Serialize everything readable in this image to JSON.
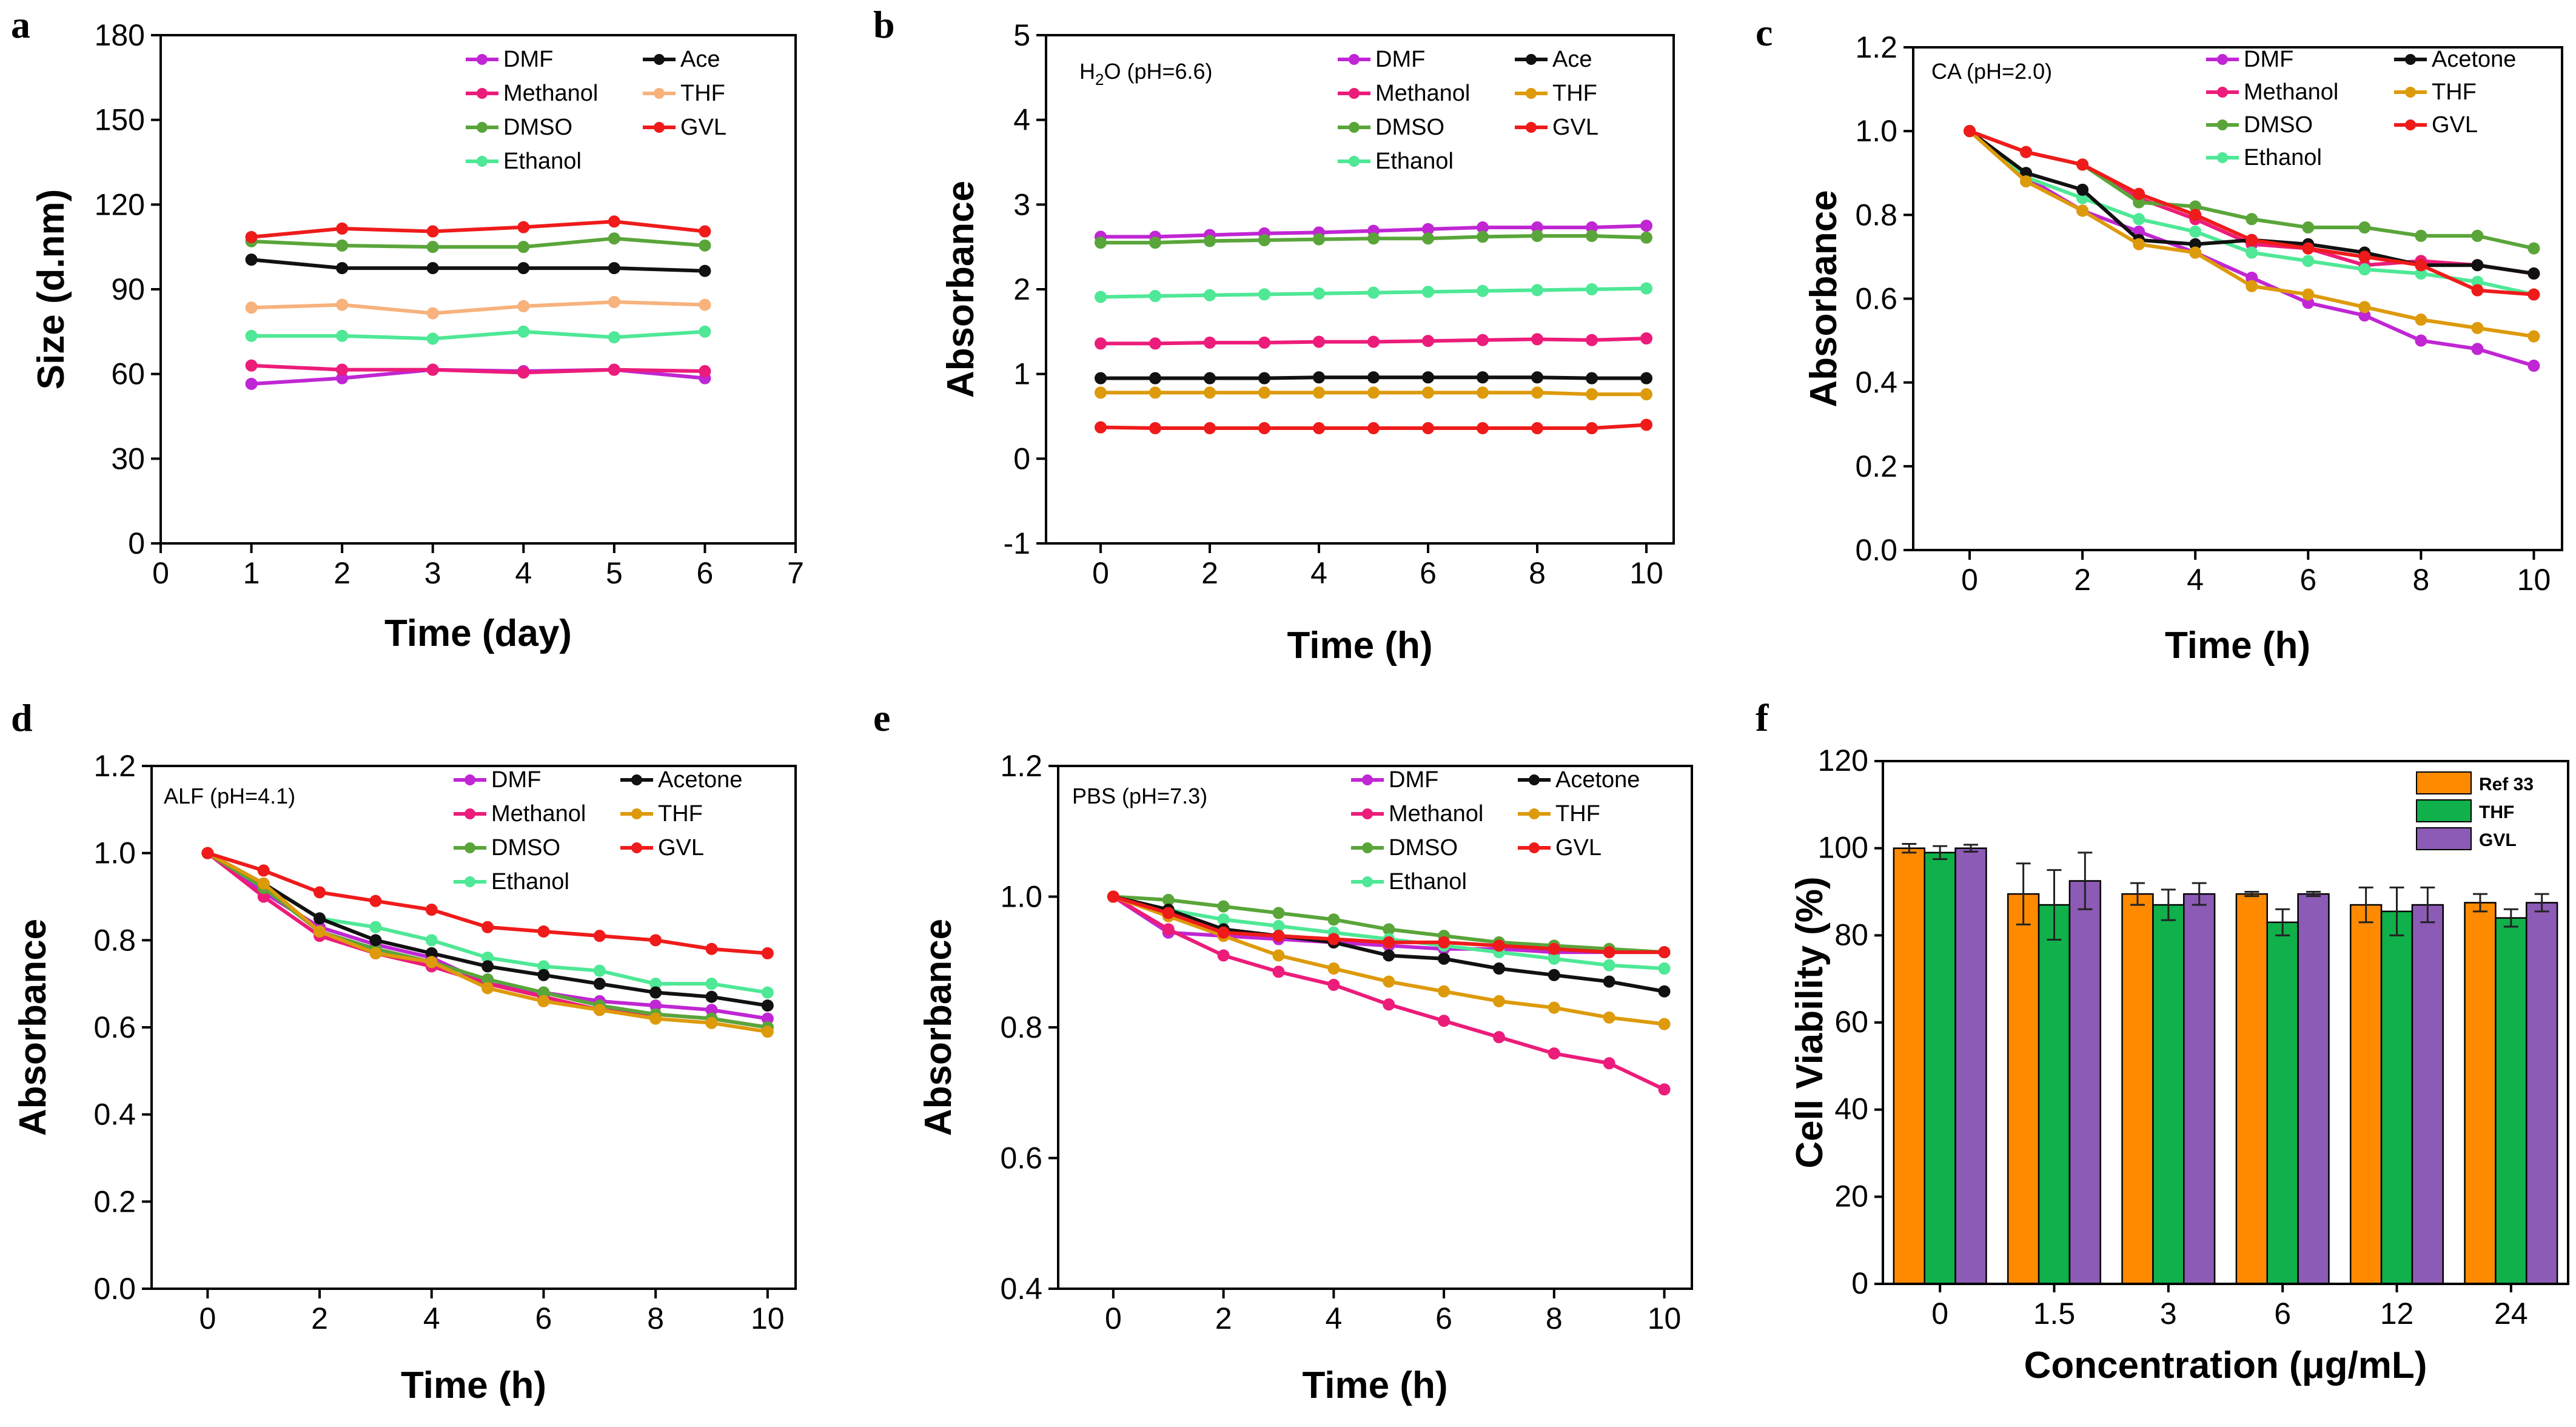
{
  "colors": {
    "DMF": "#c026d3",
    "Ace": "#111111",
    "Acetone": "#111111",
    "Methanol": "#ec1c7a",
    "THF_a": "#f7b27d",
    "THF": "#dd9a0b",
    "DMSO": "#5aa53a",
    "GVL": "#ef1b1b",
    "Ethanol": "#4ee896",
    "Ref 33": "#ff8a00",
    "THF_bar": "#10b04a",
    "GVL_bar": "#8c5bb5"
  },
  "chart_data": [
    {
      "panel": "a",
      "type": "line",
      "title": "",
      "annotation": "",
      "xlabel": "Time (day)",
      "ylabel": "Size (d.nm)",
      "xlim": [
        0,
        7
      ],
      "ylim": [
        0,
        180
      ],
      "xticks": [
        0,
        1,
        2,
        3,
        4,
        5,
        6,
        7
      ],
      "yticks": [
        0,
        30,
        60,
        90,
        120,
        150,
        180
      ],
      "x": [
        1,
        2,
        3,
        4,
        5,
        6
      ],
      "legend": [
        "DMF",
        "Methanol",
        "DMSO",
        "Ethanol",
        "Ace",
        "THF",
        "GVL"
      ],
      "series": [
        {
          "name": "DMF",
          "color_key": "DMF",
          "values": [
            56.5,
            58.5,
            61.5,
            61,
            61.5,
            58.5
          ]
        },
        {
          "name": "Methanol",
          "color_key": "Methanol",
          "values": [
            63,
            61.5,
            61.5,
            60.5,
            61.5,
            61
          ]
        },
        {
          "name": "DMSO",
          "color_key": "DMSO",
          "values": [
            107,
            105.5,
            105,
            105,
            108,
            105.5
          ]
        },
        {
          "name": "Ethanol",
          "color_key": "Ethanol",
          "values": [
            73.5,
            73.5,
            72.5,
            75,
            73,
            75
          ]
        },
        {
          "name": "Ace",
          "color_key": "Ace",
          "values": [
            100.5,
            97.5,
            97.5,
            97.5,
            97.5,
            96.5
          ]
        },
        {
          "name": "THF",
          "color_key": "THF_a",
          "values": [
            83.5,
            84.5,
            81.5,
            84,
            85.5,
            84.5
          ]
        },
        {
          "name": "GVL",
          "color_key": "GVL",
          "values": [
            108.5,
            111.5,
            110.5,
            112,
            114,
            110.5
          ]
        }
      ]
    },
    {
      "panel": "b",
      "type": "line",
      "title": "",
      "annotation": "H2O (pH=6.6)",
      "annotation_parts": [
        "H",
        "2",
        "O (pH=6.6)"
      ],
      "xlabel": "Time (h)",
      "ylabel": "Absorbance",
      "xlim": [
        -1,
        10.5
      ],
      "ylim": [
        -1,
        5
      ],
      "xticks": [
        0,
        2,
        4,
        6,
        8,
        10
      ],
      "yticks": [
        -1,
        0,
        1,
        2,
        3,
        4,
        5
      ],
      "x": [
        0,
        1,
        2,
        3,
        4,
        5,
        6,
        7,
        8,
        9,
        10
      ],
      "legend": [
        "DMF",
        "Methanol",
        "DMSO",
        "Ethanol",
        "Ace",
        "THF",
        "GVL"
      ],
      "series": [
        {
          "name": "DMF",
          "color_key": "DMF",
          "values": [
            2.62,
            2.62,
            2.64,
            2.66,
            2.67,
            2.69,
            2.71,
            2.73,
            2.73,
            2.73,
            2.75
          ]
        },
        {
          "name": "Methanol",
          "color_key": "Methanol",
          "values": [
            1.36,
            1.36,
            1.37,
            1.37,
            1.38,
            1.38,
            1.39,
            1.4,
            1.41,
            1.4,
            1.42
          ]
        },
        {
          "name": "DMSO",
          "color_key": "DMSO",
          "values": [
            2.55,
            2.55,
            2.57,
            2.58,
            2.59,
            2.6,
            2.6,
            2.62,
            2.63,
            2.63,
            2.61
          ]
        },
        {
          "name": "Ethanol",
          "color_key": "Ethanol",
          "values": [
            1.91,
            1.92,
            1.93,
            1.94,
            1.95,
            1.96,
            1.97,
            1.98,
            1.99,
            2.0,
            2.01
          ]
        },
        {
          "name": "Ace",
          "color_key": "Ace",
          "values": [
            0.95,
            0.95,
            0.95,
            0.95,
            0.96,
            0.96,
            0.96,
            0.96,
            0.96,
            0.95,
            0.95
          ]
        },
        {
          "name": "THF",
          "color_key": "THF",
          "values": [
            0.78,
            0.78,
            0.78,
            0.78,
            0.78,
            0.78,
            0.78,
            0.78,
            0.78,
            0.76,
            0.76
          ]
        },
        {
          "name": "GVL",
          "color_key": "GVL",
          "values": [
            0.37,
            0.36,
            0.36,
            0.36,
            0.36,
            0.36,
            0.36,
            0.36,
            0.36,
            0.36,
            0.4
          ]
        }
      ]
    },
    {
      "panel": "c",
      "type": "line",
      "title": "",
      "annotation": "CA (pH=2.0)",
      "xlabel": "Time (h)",
      "ylabel": "Absorbance",
      "xlim": [
        -1,
        10.5
      ],
      "ylim": [
        0,
        1.2
      ],
      "xticks": [
        0,
        2,
        4,
        6,
        8,
        10
      ],
      "yticks": [
        0.0,
        0.2,
        0.4,
        0.6,
        0.8,
        1.0,
        1.2
      ],
      "x": [
        0,
        1,
        2,
        3,
        4,
        5,
        6,
        7,
        8,
        9,
        10
      ],
      "legend": [
        "DMF",
        "Methanol",
        "DMSO",
        "Ethanol",
        "Acetone",
        "THF",
        "GVL"
      ],
      "series": [
        {
          "name": "DMF",
          "color_key": "DMF",
          "values": [
            1.0,
            0.89,
            0.81,
            0.76,
            0.71,
            0.65,
            0.59,
            0.56,
            0.5,
            0.48,
            0.44
          ]
        },
        {
          "name": "Methanol",
          "color_key": "Methanol",
          "values": [
            1.0,
            0.95,
            0.92,
            0.84,
            0.79,
            0.73,
            0.72,
            0.68,
            0.69,
            0.68,
            0.66
          ]
        },
        {
          "name": "DMSO",
          "color_key": "DMSO",
          "values": [
            1.0,
            0.95,
            0.92,
            0.83,
            0.82,
            0.79,
            0.77,
            0.77,
            0.75,
            0.75,
            0.72
          ]
        },
        {
          "name": "Ethanol",
          "color_key": "Ethanol",
          "values": [
            1.0,
            0.89,
            0.84,
            0.79,
            0.76,
            0.71,
            0.69,
            0.67,
            0.66,
            0.64,
            0.61
          ]
        },
        {
          "name": "Acetone",
          "color_key": "Acetone",
          "values": [
            1.0,
            0.9,
            0.86,
            0.74,
            0.73,
            0.74,
            0.73,
            0.71,
            0.68,
            0.68,
            0.66
          ]
        },
        {
          "name": "THF",
          "color_key": "THF",
          "values": [
            1.0,
            0.88,
            0.81,
            0.73,
            0.71,
            0.63,
            0.61,
            0.58,
            0.55,
            0.53,
            0.51
          ]
        },
        {
          "name": "GVL",
          "color_key": "GVL",
          "values": [
            1.0,
            0.95,
            0.92,
            0.85,
            0.8,
            0.74,
            0.72,
            0.7,
            0.68,
            0.62,
            0.61
          ]
        }
      ]
    },
    {
      "panel": "d",
      "type": "line",
      "title": "",
      "annotation": "ALF (pH=4.1)",
      "xlabel": "Time (h)",
      "ylabel": "Absorbance",
      "xlim": [
        -1,
        10.5
      ],
      "ylim": [
        0,
        1.2
      ],
      "xticks": [
        0,
        2,
        4,
        6,
        8,
        10
      ],
      "yticks": [
        0.0,
        0.2,
        0.4,
        0.6,
        0.8,
        1.0,
        1.2
      ],
      "x": [
        0,
        1,
        2,
        3,
        4,
        5,
        6,
        7,
        8,
        9,
        10
      ],
      "legend": [
        "DMF",
        "Methanol",
        "DMSO",
        "Ethanol",
        "Acetone",
        "THF",
        "GVL"
      ],
      "series": [
        {
          "name": "DMF",
          "color_key": "DMF",
          "values": [
            1.0,
            0.91,
            0.83,
            0.79,
            0.76,
            0.7,
            0.68,
            0.66,
            0.65,
            0.64,
            0.62
          ]
        },
        {
          "name": "Methanol",
          "color_key": "Methanol",
          "values": [
            1.0,
            0.9,
            0.81,
            0.77,
            0.74,
            0.7,
            0.67,
            0.64,
            0.63,
            0.62,
            0.6
          ]
        },
        {
          "name": "DMSO",
          "color_key": "DMSO",
          "values": [
            1.0,
            0.92,
            0.82,
            0.78,
            0.75,
            0.71,
            0.68,
            0.65,
            0.63,
            0.62,
            0.6
          ]
        },
        {
          "name": "Ethanol",
          "color_key": "Ethanol",
          "values": [
            1.0,
            0.93,
            0.85,
            0.83,
            0.8,
            0.76,
            0.74,
            0.73,
            0.7,
            0.7,
            0.68
          ]
        },
        {
          "name": "Acetone",
          "color_key": "Acetone",
          "values": [
            1.0,
            0.93,
            0.85,
            0.8,
            0.77,
            0.74,
            0.72,
            0.7,
            0.68,
            0.67,
            0.65
          ]
        },
        {
          "name": "THF",
          "color_key": "THF",
          "values": [
            1.0,
            0.93,
            0.82,
            0.77,
            0.75,
            0.69,
            0.66,
            0.64,
            0.62,
            0.61,
            0.59
          ]
        },
        {
          "name": "GVL",
          "color_key": "GVL",
          "values": [
            1.0,
            0.96,
            0.91,
            0.89,
            0.87,
            0.83,
            0.82,
            0.81,
            0.8,
            0.78,
            0.77
          ]
        }
      ]
    },
    {
      "panel": "e",
      "type": "line",
      "title": "",
      "annotation": "PBS (pH=7.3)",
      "xlabel": "Time (h)",
      "ylabel": "Absorbance",
      "xlim": [
        -1,
        10.5
      ],
      "ylim": [
        0.4,
        1.2
      ],
      "xticks": [
        0,
        2,
        4,
        6,
        8,
        10
      ],
      "yticks": [
        0.4,
        0.6,
        0.8,
        1.0,
        1.2
      ],
      "x": [
        0,
        1,
        2,
        3,
        4,
        5,
        6,
        7,
        8,
        9,
        10
      ],
      "legend": [
        "DMF",
        "Methanol",
        "DMSO",
        "Ethanol",
        "Acetone",
        "THF",
        "GVL"
      ],
      "series": [
        {
          "name": "DMF",
          "color_key": "DMF",
          "values": [
            1.0,
            0.945,
            0.94,
            0.935,
            0.93,
            0.925,
            0.92,
            0.92,
            0.915,
            0.915,
            0.915
          ]
        },
        {
          "name": "Methanol",
          "color_key": "Methanol",
          "values": [
            1.0,
            0.95,
            0.91,
            0.885,
            0.865,
            0.835,
            0.81,
            0.785,
            0.76,
            0.745,
            0.705
          ]
        },
        {
          "name": "DMSO",
          "color_key": "DMSO",
          "values": [
            1.0,
            0.995,
            0.985,
            0.975,
            0.965,
            0.95,
            0.94,
            0.93,
            0.925,
            0.92,
            0.915
          ]
        },
        {
          "name": "Ethanol",
          "color_key": "Ethanol",
          "values": [
            1.0,
            0.98,
            0.965,
            0.955,
            0.945,
            0.935,
            0.925,
            0.915,
            0.905,
            0.895,
            0.89
          ]
        },
        {
          "name": "Acetone",
          "color_key": "Acetone",
          "values": [
            1.0,
            0.98,
            0.95,
            0.94,
            0.93,
            0.91,
            0.905,
            0.89,
            0.88,
            0.87,
            0.855
          ]
        },
        {
          "name": "THF",
          "color_key": "THF",
          "values": [
            1.0,
            0.97,
            0.94,
            0.91,
            0.89,
            0.87,
            0.855,
            0.84,
            0.83,
            0.815,
            0.805
          ]
        },
        {
          "name": "GVL",
          "color_key": "GVL",
          "values": [
            1.0,
            0.975,
            0.945,
            0.94,
            0.935,
            0.93,
            0.93,
            0.925,
            0.92,
            0.915,
            0.915
          ]
        }
      ]
    },
    {
      "panel": "f",
      "type": "bar",
      "title": "",
      "xlabel": "Concentration (μg/mL)",
      "ylabel": "Cell Viability (%)",
      "ylim": [
        0,
        120
      ],
      "yticks": [
        0,
        20,
        40,
        60,
        80,
        100,
        120
      ],
      "categories": [
        "0",
        "1.5",
        "3",
        "6",
        "12",
        "24"
      ],
      "legend": [
        "Ref 33",
        "THF",
        "GVL"
      ],
      "series": [
        {
          "name": "Ref 33",
          "color_key": "Ref 33",
          "values": [
            100,
            89.5,
            89.5,
            89.5,
            87,
            87.5
          ],
          "errors": [
            1,
            7,
            2.5,
            0.5,
            4,
            2
          ]
        },
        {
          "name": "THF",
          "color_key": "THF_bar",
          "values": [
            99,
            87,
            87,
            83,
            85.5,
            84
          ],
          "errors": [
            1.5,
            8,
            3.5,
            3,
            5.5,
            2
          ]
        },
        {
          "name": "GVL",
          "color_key": "GVL_bar",
          "values": [
            100,
            92.5,
            89.5,
            89.5,
            87,
            87.5
          ],
          "errors": [
            0.8,
            6.5,
            2.5,
            0.5,
            4,
            2
          ]
        }
      ]
    }
  ]
}
